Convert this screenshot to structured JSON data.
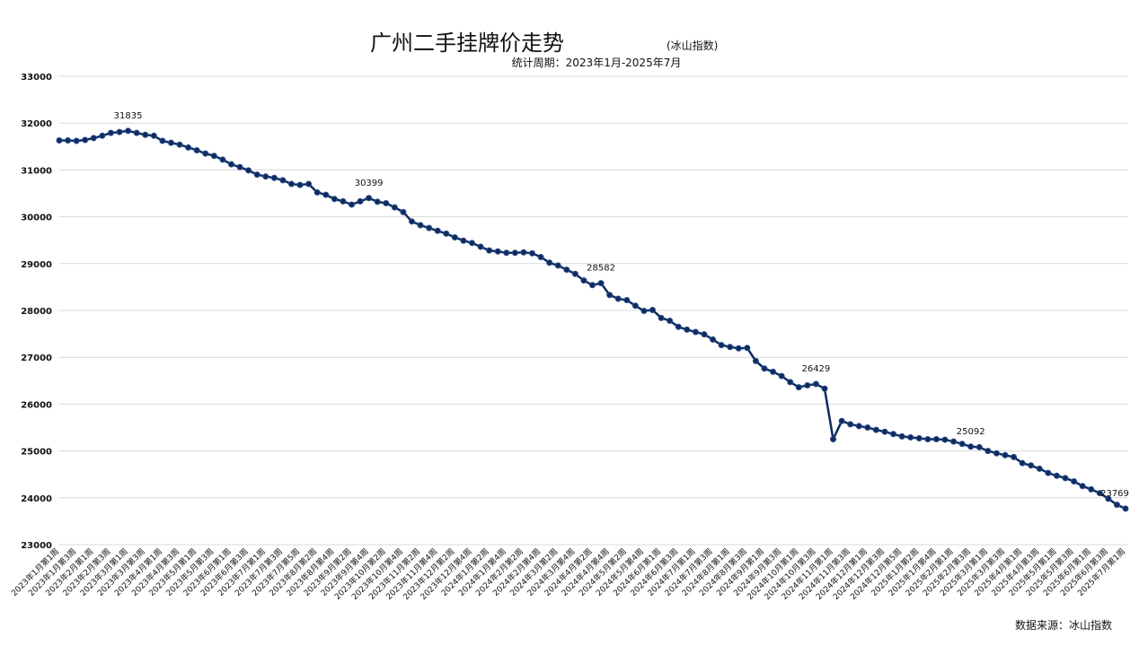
{
  "chart_data": {
    "type": "line",
    "title": "广州二手挂牌价走势",
    "title_note": "(冰山指数)",
    "subtitle": "统计周期：2023年1月-2025年7月",
    "source": "数据来源：冰山指数",
    "categories": [
      "2023年1月第1周",
      null,
      "2023年1月第3周",
      null,
      "2023年2月第1周",
      null,
      "2023年2月第3周",
      null,
      "2023年3月第1周",
      null,
      "2023年3月第3周",
      null,
      "2023年4月第1周",
      null,
      "2023年4月第3周",
      null,
      "2023年5月第1周",
      null,
      "2023年5月第3周",
      null,
      "2023年6月第1周",
      null,
      "2023年6月第3周",
      null,
      "2023年7月第1周",
      null,
      "2023年7月第3周",
      null,
      "2023年7月第5周",
      null,
      "2023年8月第2周",
      null,
      "2023年8月第4周",
      null,
      "2023年9月第2周",
      null,
      "2023年9月第4周",
      null,
      "2023年10月第2周",
      null,
      "2023年10月第4周",
      null,
      "2023年11月第2周",
      null,
      "2023年11月第4周",
      null,
      "2023年12月第2周",
      null,
      "2023年12月第4周",
      null,
      "2024年1月第2周",
      null,
      "2024年1月第4周",
      null,
      "2024年2月第2周",
      null,
      "2024年2月第4周",
      null,
      "2024年3月第2周",
      null,
      "2024年3月第4周",
      null,
      "2024年4月第2周",
      null,
      "2024年4月第4周",
      null,
      "2024年5月第2周",
      null,
      "2024年5月第4周",
      null,
      "2024年6月第1周",
      null,
      "2024年6月第3周",
      null,
      "2024年7月第1周",
      null,
      "2024年7月第3周",
      null,
      "2024年8月第1周",
      null,
      "2024年8月第3周",
      null,
      "2024年9月第1周",
      null,
      "2024年9月第3周",
      null,
      "2024年10月第1周",
      null,
      "2024年10月第3周",
      null,
      "2024年11月第1周",
      null,
      "2024年11月第3周",
      null,
      "2024年12月第1周",
      null,
      "2024年12月第3周",
      null,
      "2024年12月第5周",
      null,
      "2025年1月第2周",
      null,
      "2025年1月第4周",
      null,
      "2025年2月第1周",
      null,
      "2025年2月第3周",
      null,
      "2025年3月第1周",
      null,
      "2025年3月第3周",
      null,
      "2025年4月第1周",
      null,
      "2025年4月第3周",
      null,
      "2025年5月第1周",
      null,
      "2025年5月第3周",
      null,
      "2025年6月第1周",
      null,
      "2025年6月第3周",
      null,
      "2025年7月第1周"
    ],
    "values": [
      31630,
      31630,
      31620,
      31640,
      31680,
      31730,
      31790,
      31810,
      31835,
      31790,
      31750,
      31730,
      31620,
      31580,
      31540,
      31480,
      31420,
      31350,
      31300,
      31220,
      31120,
      31060,
      30990,
      30900,
      30860,
      30830,
      30780,
      30700,
      30680,
      30700,
      30520,
      30470,
      30380,
      30330,
      30260,
      30330,
      30399,
      30320,
      30290,
      30200,
      30100,
      29900,
      29820,
      29760,
      29700,
      29640,
      29560,
      29490,
      29440,
      29360,
      29280,
      29260,
      29230,
      29230,
      29240,
      29220,
      29140,
      29020,
      28960,
      28870,
      28780,
      28640,
      28540,
      28582,
      28330,
      28250,
      28220,
      28100,
      27990,
      28010,
      27840,
      27780,
      27650,
      27590,
      27540,
      27490,
      27380,
      27260,
      27220,
      27190,
      27200,
      26920,
      26760,
      26690,
      26600,
      26470,
      26360,
      26400,
      26429,
      26330,
      25250,
      25640,
      25570,
      25530,
      25500,
      25450,
      25410,
      25360,
      25310,
      25290,
      25270,
      25250,
      25250,
      25240,
      25200,
      25150,
      25092,
      25080,
      25000,
      24950,
      24910,
      24870,
      24740,
      24690,
      24620,
      24530,
      24470,
      24420,
      24350,
      24250,
      24180,
      24100,
      23980,
      23850,
      23769
    ],
    "value_labels": [
      null,
      null,
      null,
      null,
      null,
      null,
      null,
      null,
      "31835",
      null,
      null,
      null,
      null,
      null,
      null,
      null,
      null,
      null,
      null,
      null,
      null,
      null,
      null,
      null,
      null,
      null,
      null,
      null,
      null,
      null,
      null,
      null,
      null,
      null,
      null,
      null,
      "30399",
      null,
      null,
      null,
      null,
      null,
      null,
      null,
      null,
      null,
      null,
      null,
      null,
      null,
      null,
      null,
      null,
      null,
      null,
      null,
      null,
      null,
      null,
      null,
      null,
      null,
      null,
      "28582",
      null,
      null,
      null,
      null,
      null,
      null,
      null,
      null,
      null,
      null,
      null,
      null,
      null,
      null,
      null,
      null,
      null,
      null,
      null,
      null,
      null,
      null,
      null,
      null,
      "26429",
      null,
      null,
      null,
      null,
      null,
      null,
      null,
      null,
      null,
      null,
      null,
      null,
      null,
      null,
      null,
      null,
      null,
      "25092",
      null,
      null,
      null,
      null,
      null,
      null,
      null,
      null,
      null,
      null,
      null,
      null,
      null,
      null,
      null,
      null,
      null,
      "23769"
    ],
    "color": "#0d2b5e",
    "ylim": [
      23000,
      33000
    ],
    "yticks": [
      23000,
      24000,
      25000,
      26000,
      27000,
      28000,
      29000,
      30000,
      31000,
      32000,
      33000
    ],
    "grid": true
  }
}
